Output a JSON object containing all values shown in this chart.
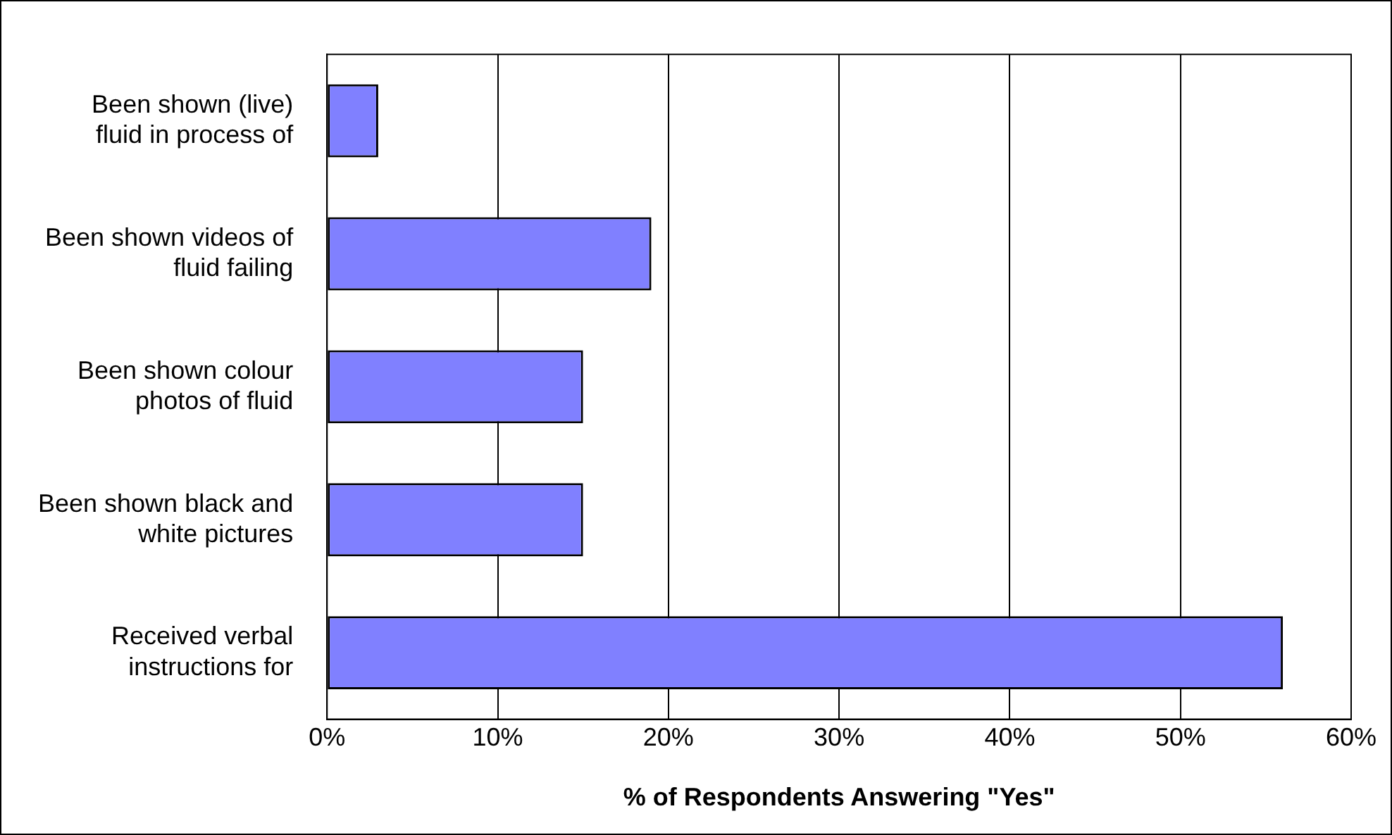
{
  "chart_data": {
    "type": "bar",
    "orientation": "horizontal",
    "xlabel": "% of Respondents Answering \"Yes\"",
    "categories": [
      "Been shown (live) fluid in process of",
      "Been shown videos of fluid failing",
      "Been shown colour photos of fluid",
      "Been shown black and white pictures",
      "Received verbal instructions for"
    ],
    "values": [
      3,
      19,
      15,
      15,
      56
    ],
    "color": "#8080ff",
    "xlim": [
      0,
      60
    ],
    "xticks": [
      {
        "value": 0,
        "label": "0%"
      },
      {
        "value": 10,
        "label": "10%"
      },
      {
        "value": 20,
        "label": "20%"
      },
      {
        "value": 30,
        "label": "30%"
      },
      {
        "value": 40,
        "label": "40%"
      },
      {
        "value": 50,
        "label": "50%"
      },
      {
        "value": 60,
        "label": "60%"
      }
    ],
    "grid": "x",
    "legend": false
  }
}
